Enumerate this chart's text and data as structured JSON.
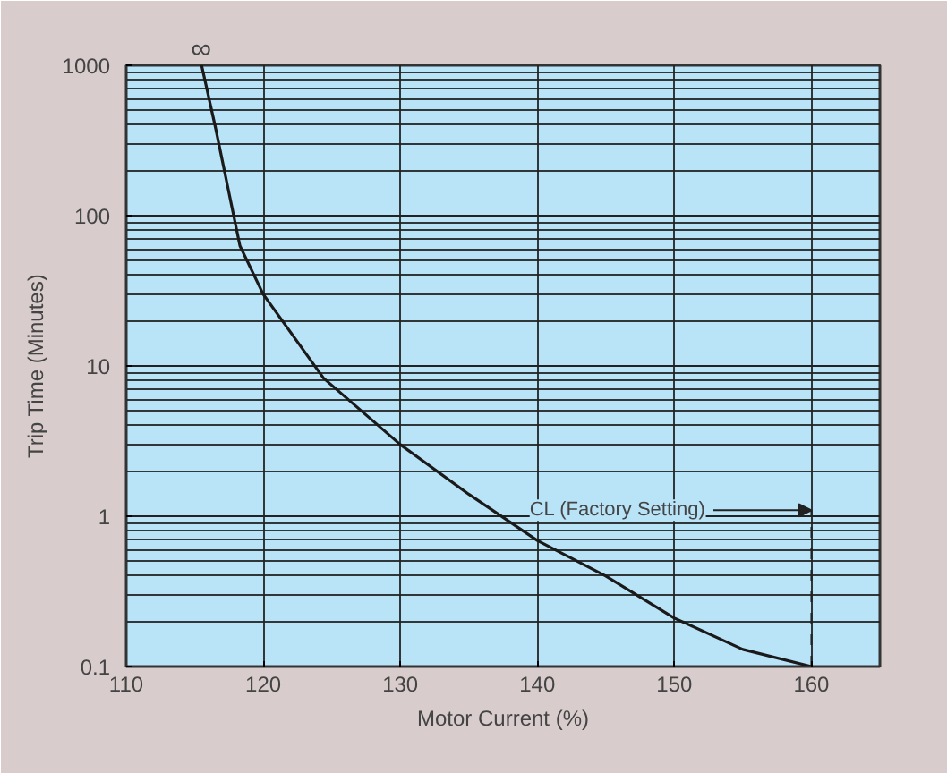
{
  "chart_data": {
    "type": "line",
    "xlabel": "Motor Current (%)",
    "ylabel": "Trip Time (Minutes)",
    "x": [
      115.5,
      116.5,
      118.3,
      120,
      124.4,
      130,
      135,
      140,
      145,
      150,
      155,
      160
    ],
    "series": [
      {
        "color": "#1a1a1a",
        "values": [
          1000,
          390,
          63,
          30,
          8.3,
          3,
          1.4,
          0.69,
          0.4,
          0.21,
          0.13,
          0.1
        ]
      }
    ],
    "xlim": [
      110,
      165
    ],
    "xticks": [
      110,
      120,
      130,
      140,
      150,
      160
    ],
    "ylim": [
      0.1,
      1000
    ],
    "yticks": [
      0.1,
      1,
      10,
      100,
      1000
    ],
    "log": "y",
    "grid": true,
    "marker": "none",
    "line_style": "solid",
    "ref_lines": [
      {
        "axis": "x",
        "value": 160,
        "label": "CL (Factory Setting)",
        "line_style": "dashed"
      }
    ],
    "annotations": [
      "∞"
    ]
  }
}
